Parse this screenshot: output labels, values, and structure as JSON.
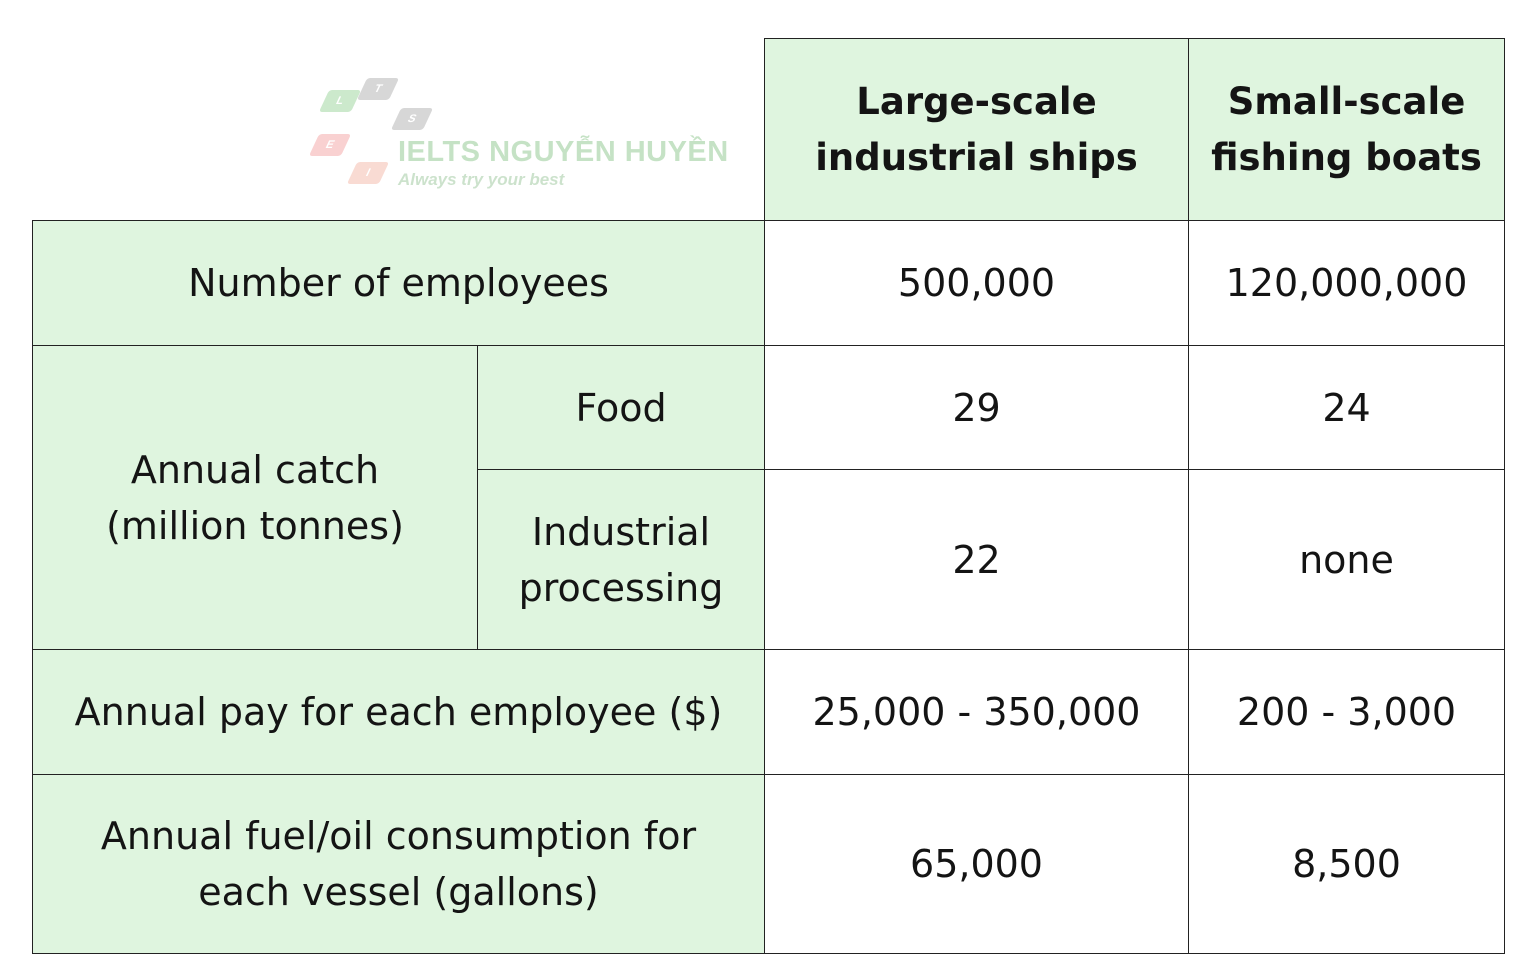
{
  "watermark": {
    "brand": "IELTS NGUYỄN HUYỀN",
    "tagline": "Always try your best",
    "letters": [
      "L",
      "T",
      "S",
      "E",
      "I"
    ]
  },
  "colors": {
    "header_fill": "#dff5df",
    "value_fill": "#ffffff",
    "border": "#222222"
  },
  "chart_data": {
    "type": "table",
    "columns": [
      "Large-scale industrial ships",
      "Small-scale fishing boats"
    ],
    "rows": [
      {
        "label": "Number of employees",
        "values": [
          "500,000",
          "120,000,000"
        ]
      },
      {
        "label": "Annual catch (million tonnes)",
        "sub_rows": [
          {
            "label": "Food",
            "values": [
              "29",
              "24"
            ]
          },
          {
            "label": "Industrial processing",
            "values": [
              "22",
              "none"
            ]
          }
        ]
      },
      {
        "label": "Annual pay for each employee ($)",
        "values": [
          "25,000 - 350,000",
          "200 - 3,000"
        ]
      },
      {
        "label": "Annual fuel/oil consumption for each vessel (gallons)",
        "values": [
          "65,000",
          "8,500"
        ]
      }
    ]
  }
}
